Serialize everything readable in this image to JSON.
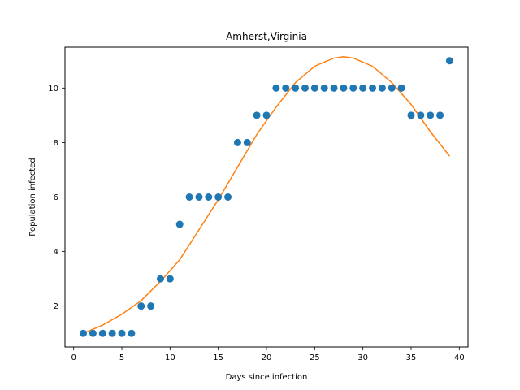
{
  "chart_data": {
    "type": "scatter",
    "title": "Amherst,Virginia",
    "xlabel": "Days since infection",
    "ylabel": "Population infected",
    "xlim": [
      -0.9,
      40.9
    ],
    "ylim": [
      0.5,
      11.5
    ],
    "xticks": [
      0,
      5,
      10,
      15,
      20,
      25,
      30,
      35,
      40
    ],
    "yticks": [
      2,
      4,
      6,
      8,
      10
    ],
    "grid": false,
    "series": [
      {
        "type": "scatter",
        "color": "#1f77b4",
        "x": [
          1,
          2,
          3,
          4,
          5,
          6,
          7,
          8,
          9,
          10,
          11,
          12,
          13,
          14,
          15,
          16,
          17,
          18,
          19,
          20,
          21,
          22,
          23,
          24,
          25,
          26,
          27,
          28,
          29,
          30,
          31,
          32,
          33,
          34,
          35,
          36,
          37,
          38,
          39
        ],
        "y": [
          1,
          1,
          1,
          1,
          1,
          1,
          2,
          2,
          3,
          3,
          5,
          6,
          6,
          6,
          6,
          6,
          8,
          8,
          9,
          9,
          10,
          10,
          10,
          10,
          10,
          10,
          10,
          10,
          10,
          10,
          10,
          10,
          10,
          10,
          9,
          9,
          9,
          9,
          11
        ]
      },
      {
        "type": "line",
        "color": "#ff7f0e",
        "x": [
          1,
          3,
          5,
          7,
          9,
          11,
          13,
          15,
          17,
          19,
          21,
          23,
          25,
          27,
          28,
          29,
          31,
          33,
          35,
          37,
          39
        ],
        "y": [
          1.0,
          1.3,
          1.7,
          2.2,
          2.9,
          3.7,
          4.8,
          5.9,
          7.1,
          8.3,
          9.3,
          10.2,
          10.8,
          11.1,
          11.15,
          11.1,
          10.8,
          10.2,
          9.4,
          8.4,
          7.5
        ]
      }
    ]
  }
}
